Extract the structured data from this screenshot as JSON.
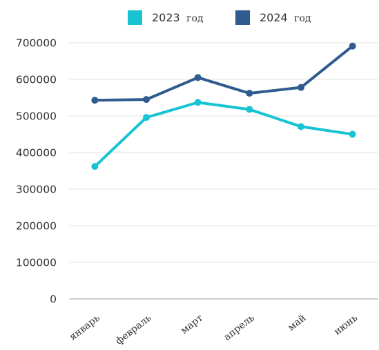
{
  "chart_data": {
    "type": "line",
    "categories": [
      "январь",
      "февраль",
      "март",
      "апрель",
      "май",
      "июнь"
    ],
    "series": [
      {
        "name": "2023 год",
        "year": "2023",
        "unit": "год",
        "color": "#18c3d3",
        "values": [
          362000,
          496000,
          537000,
          518000,
          471000,
          450000
        ]
      },
      {
        "name": "2024 год",
        "year": "2024",
        "unit": "год",
        "color": "#2f5b8f",
        "values": [
          543000,
          545000,
          605000,
          562000,
          578000,
          691000
        ]
      }
    ],
    "yticks": [
      "0",
      "100000",
      "200000",
      "300000",
      "400000",
      "500000",
      "600000",
      "700000"
    ],
    "ylim": [
      0,
      700000
    ],
    "grid": true,
    "legend_position": "top-center"
  }
}
